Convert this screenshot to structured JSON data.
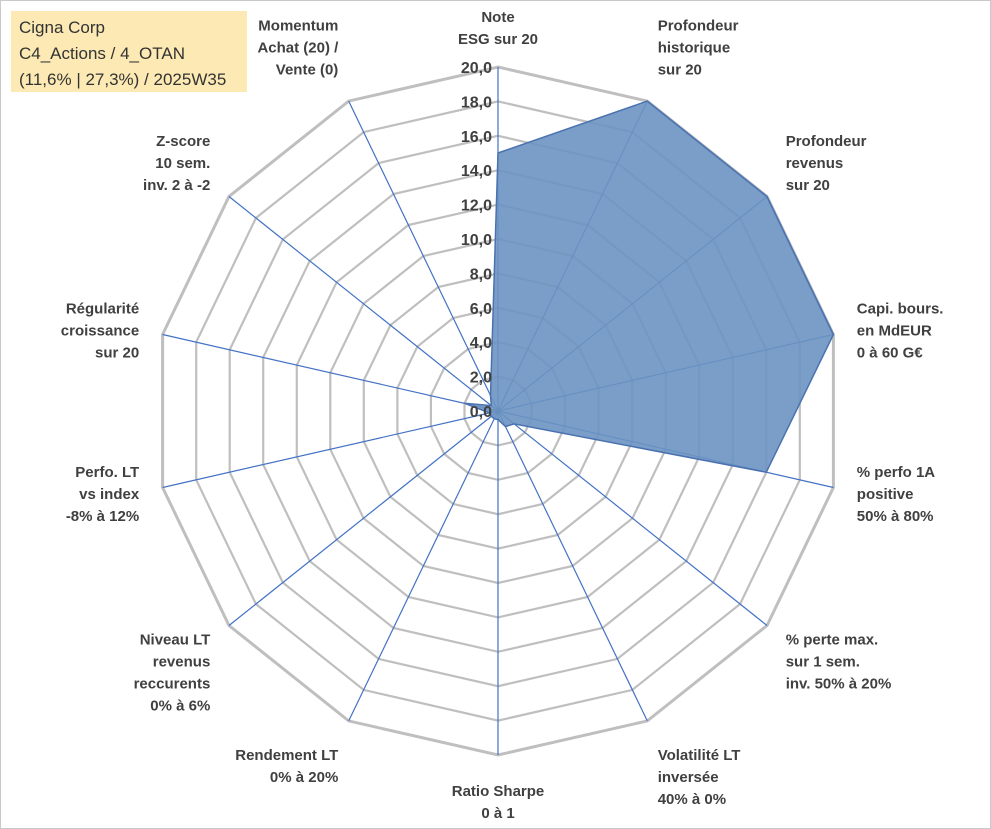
{
  "title": {
    "line1": "Cigna Corp",
    "line2": "C4_Actions / 4_OTAN",
    "line3": "(11,6% | 27,3%) / 2025W35"
  },
  "colors": {
    "fill": "#6b93c2",
    "stroke": "#4a72b0",
    "grid": "#bfbfbf",
    "spoke": "#4472c4",
    "label": "#404040",
    "title_bg": "#fce9b3"
  },
  "chart_data": {
    "type": "radar",
    "scale": {
      "min": 0,
      "max": 20,
      "step": 2
    },
    "tick_labels": [
      "0,0",
      "2,0",
      "4,0",
      "6,0",
      "8,0",
      "10,0",
      "12,0",
      "14,0",
      "16,0",
      "18,0",
      "20,0"
    ],
    "axes": [
      {
        "lines": [
          "Note",
          "ESG sur 20"
        ],
        "value": 15
      },
      {
        "lines": [
          "Profondeur",
          "historique",
          "sur 20"
        ],
        "value": 20
      },
      {
        "lines": [
          "Profondeur",
          "revenus",
          "sur 20"
        ],
        "value": 20
      },
      {
        "lines": [
          "Capi. bours.",
          "en MdEUR",
          "0 à 60 G€"
        ],
        "value": 20
      },
      {
        "lines": [
          "% perfo 1A",
          "positive",
          "50% à 80%"
        ],
        "value": 16
      },
      {
        "lines": [
          "% perte max.",
          "sur 1 sem.",
          "inv. 50% à 20%"
        ],
        "value": 1.2
      },
      {
        "lines": [
          "Volatilité LT",
          "inversée",
          "40% à 0%"
        ],
        "value": 1
      },
      {
        "lines": [
          "Ratio Sharpe",
          "0 à 1"
        ],
        "value": 0.5
      },
      {
        "lines": [
          "Rendement LT",
          "0% à 20%"
        ],
        "value": 0.5
      },
      {
        "lines": [
          "Niveau LT",
          "revenus",
          "reccurents",
          "0% à 6%"
        ],
        "value": 0.5
      },
      {
        "lines": [
          "Perfo. LT",
          "vs index",
          "-8% à 12%"
        ],
        "value": 0.5
      },
      {
        "lines": [
          "Régularité",
          "croissance",
          "sur 20"
        ],
        "value": 2
      },
      {
        "lines": [
          "Z-score",
          "10 sem.",
          "inv. 2 à -2"
        ],
        "value": 0.5
      },
      {
        "lines": [
          "Momentum",
          "Achat (20) /",
          "Vente (0)"
        ],
        "value": 1
      }
    ]
  }
}
